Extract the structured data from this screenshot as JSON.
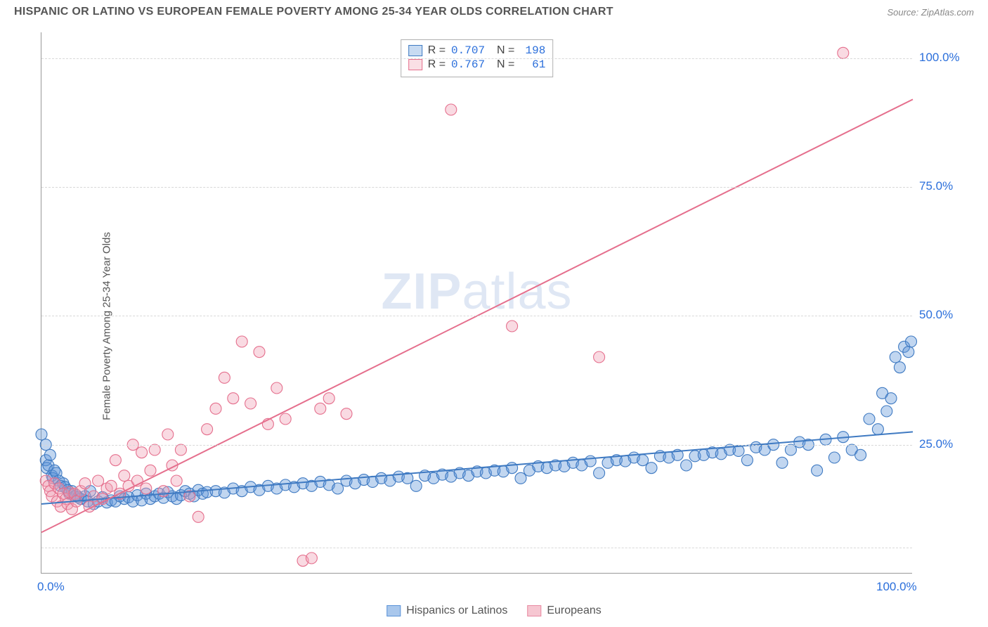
{
  "header": {
    "title": "HISPANIC OR LATINO VS EUROPEAN FEMALE POVERTY AMONG 25-34 YEAR OLDS CORRELATION CHART",
    "source": "Source: ZipAtlas.com"
  },
  "y_axis_label": "Female Poverty Among 25-34 Year Olds",
  "watermark": {
    "bold": "ZIP",
    "rest": "atlas"
  },
  "chart": {
    "type": "scatter",
    "xlim": [
      0,
      100
    ],
    "ylim": [
      0,
      105
    ],
    "background_color": "#ffffff",
    "grid_color": "#d8d8d8",
    "axis_color": "#999999",
    "yticks": [
      {
        "v": 25,
        "label": "25.0%"
      },
      {
        "v": 50,
        "label": "50.0%"
      },
      {
        "v": 75,
        "label": "75.0%"
      },
      {
        "v": 100,
        "label": "100.0%"
      }
    ],
    "xticks": [
      {
        "v": 0,
        "label": "0.0%"
      },
      {
        "v": 100,
        "label": "100.0%"
      }
    ],
    "grid_y": [
      5,
      25,
      50,
      75,
      100
    ],
    "tick_color": "#2b6fdb",
    "tick_fontsize": 17,
    "marker_radius": 8,
    "marker_fill_opacity": 0.38,
    "marker_stroke_width": 1.1,
    "line_width": 2.0,
    "series": [
      {
        "name": "Hispanics or Latinos",
        "color": "#5b93d8",
        "stroke": "#3f7ac2",
        "stats": {
          "R": "0.707",
          "N": "198"
        },
        "trend": {
          "x1": 0,
          "y1": 13.5,
          "x2": 100,
          "y2": 27.5
        },
        "points": [
          [
            0,
            27
          ],
          [
            0.5,
            25
          ],
          [
            0.5,
            22
          ],
          [
            0.6,
            20.5
          ],
          [
            0.8,
            21
          ],
          [
            1,
            23
          ],
          [
            1.2,
            19
          ],
          [
            1.3,
            18.5
          ],
          [
            1.5,
            20
          ],
          [
            1.7,
            19.5
          ],
          [
            2,
            18
          ],
          [
            2.2,
            17
          ],
          [
            2.5,
            17.5
          ],
          [
            2.7,
            16.8
          ],
          [
            3,
            16.2
          ],
          [
            3.2,
            15.5
          ],
          [
            3.5,
            16
          ],
          [
            3.8,
            15
          ],
          [
            4,
            15.2
          ],
          [
            4.2,
            14.8
          ],
          [
            4.5,
            14.5
          ],
          [
            5,
            15
          ],
          [
            5.3,
            14
          ],
          [
            5.6,
            16
          ],
          [
            6,
            13.5
          ],
          [
            6.5,
            14
          ],
          [
            7,
            14.8
          ],
          [
            7.5,
            13.8
          ],
          [
            8,
            14.2
          ],
          [
            8.5,
            14
          ],
          [
            9,
            15
          ],
          [
            9.5,
            14.5
          ],
          [
            10,
            14.8
          ],
          [
            10.5,
            14
          ],
          [
            11,
            15.2
          ],
          [
            11.5,
            14.2
          ],
          [
            12,
            15.5
          ],
          [
            12.5,
            14.5
          ],
          [
            13,
            15
          ],
          [
            13.5,
            15.5
          ],
          [
            14,
            14.7
          ],
          [
            14.5,
            15.8
          ],
          [
            15,
            15
          ],
          [
            15.5,
            14.5
          ],
          [
            16,
            15.2
          ],
          [
            16.5,
            16
          ],
          [
            17,
            15.5
          ],
          [
            17.5,
            15
          ],
          [
            18,
            16.2
          ],
          [
            18.5,
            15.5
          ],
          [
            19,
            15.8
          ],
          [
            20,
            16
          ],
          [
            21,
            15.7
          ],
          [
            22,
            16.5
          ],
          [
            23,
            16
          ],
          [
            24,
            16.8
          ],
          [
            25,
            16.2
          ],
          [
            26,
            17
          ],
          [
            27,
            16.5
          ],
          [
            28,
            17.2
          ],
          [
            29,
            16.8
          ],
          [
            30,
            17.5
          ],
          [
            31,
            17
          ],
          [
            32,
            17.8
          ],
          [
            33,
            17.2
          ],
          [
            34,
            16.5
          ],
          [
            35,
            18
          ],
          [
            36,
            17.5
          ],
          [
            37,
            18.2
          ],
          [
            38,
            17.8
          ],
          [
            39,
            18.5
          ],
          [
            40,
            18
          ],
          [
            41,
            18.8
          ],
          [
            42,
            18.5
          ],
          [
            43,
            17
          ],
          [
            44,
            19
          ],
          [
            45,
            18.5
          ],
          [
            46,
            19.2
          ],
          [
            47,
            18.8
          ],
          [
            48,
            19.5
          ],
          [
            49,
            19
          ],
          [
            50,
            19.8
          ],
          [
            51,
            19.5
          ],
          [
            52,
            20
          ],
          [
            53,
            19.8
          ],
          [
            54,
            20.5
          ],
          [
            55,
            18.5
          ],
          [
            56,
            20
          ],
          [
            57,
            20.8
          ],
          [
            58,
            20.5
          ],
          [
            59,
            21
          ],
          [
            60,
            20.8
          ],
          [
            61,
            21.5
          ],
          [
            62,
            21
          ],
          [
            63,
            21.8
          ],
          [
            64,
            19.5
          ],
          [
            65,
            21.5
          ],
          [
            66,
            22
          ],
          [
            67,
            21.8
          ],
          [
            68,
            22.5
          ],
          [
            69,
            22
          ],
          [
            70,
            20.5
          ],
          [
            71,
            22.8
          ],
          [
            72,
            22.5
          ],
          [
            73,
            23
          ],
          [
            74,
            21
          ],
          [
            75,
            22.8
          ],
          [
            76,
            23
          ],
          [
            77,
            23.5
          ],
          [
            78,
            23.2
          ],
          [
            79,
            24
          ],
          [
            80,
            23.8
          ],
          [
            81,
            22
          ],
          [
            82,
            24.5
          ],
          [
            83,
            24
          ],
          [
            84,
            25
          ],
          [
            85,
            21.5
          ],
          [
            86,
            24
          ],
          [
            87,
            25.5
          ],
          [
            88,
            25
          ],
          [
            89,
            20
          ],
          [
            90,
            26
          ],
          [
            91,
            22.5
          ],
          [
            92,
            26.5
          ],
          [
            93,
            24
          ],
          [
            94,
            23
          ],
          [
            95,
            30
          ],
          [
            96,
            28
          ],
          [
            96.5,
            35
          ],
          [
            97,
            31.5
          ],
          [
            97.5,
            34
          ],
          [
            98,
            42
          ],
          [
            98.5,
            40
          ],
          [
            99,
            44
          ],
          [
            99.5,
            43
          ],
          [
            99.8,
            45
          ]
        ]
      },
      {
        "name": "Europeans",
        "color": "#f09fb2",
        "stroke": "#e56f8d",
        "stats": {
          "R": "0.767",
          "N": "61"
        },
        "trend": {
          "x1": 0,
          "y1": 8,
          "x2": 100,
          "y2": 92
        },
        "points": [
          [
            0.5,
            18
          ],
          [
            0.8,
            17
          ],
          [
            1,
            16
          ],
          [
            1.2,
            15
          ],
          [
            1.5,
            17.5
          ],
          [
            1.8,
            14
          ],
          [
            2,
            16.5
          ],
          [
            2.2,
            13
          ],
          [
            2.5,
            15.5
          ],
          [
            2.8,
            14.5
          ],
          [
            3,
            13.5
          ],
          [
            3.2,
            15.8
          ],
          [
            3.5,
            12.5
          ],
          [
            3.8,
            15.5
          ],
          [
            4,
            14
          ],
          [
            4.5,
            16
          ],
          [
            5,
            17.5
          ],
          [
            5.5,
            13
          ],
          [
            6,
            15
          ],
          [
            6.5,
            18
          ],
          [
            7,
            14.5
          ],
          [
            7.5,
            16.5
          ],
          [
            8,
            17
          ],
          [
            8.5,
            22
          ],
          [
            9,
            15.5
          ],
          [
            9.5,
            19
          ],
          [
            10,
            17
          ],
          [
            10.5,
            25
          ],
          [
            11,
            18
          ],
          [
            11.5,
            23.5
          ],
          [
            12,
            16.5
          ],
          [
            12.5,
            20
          ],
          [
            13,
            24
          ],
          [
            14,
            16
          ],
          [
            14.5,
            27
          ],
          [
            15,
            21
          ],
          [
            15.5,
            18
          ],
          [
            16,
            24
          ],
          [
            17,
            15
          ],
          [
            18,
            11
          ],
          [
            19,
            28
          ],
          [
            20,
            32
          ],
          [
            21,
            38
          ],
          [
            22,
            34
          ],
          [
            23,
            45
          ],
          [
            24,
            33
          ],
          [
            25,
            43
          ],
          [
            26,
            29
          ],
          [
            27,
            36
          ],
          [
            28,
            30
          ],
          [
            30,
            2.5
          ],
          [
            31,
            3
          ],
          [
            32,
            32
          ],
          [
            33,
            34
          ],
          [
            35,
            31
          ],
          [
            47,
            90
          ],
          [
            54,
            48
          ],
          [
            64,
            42
          ],
          [
            92,
            101
          ]
        ]
      }
    ]
  },
  "legend": {
    "items": [
      {
        "label": "Hispanics or Latinos",
        "fill": "#a9c7ec",
        "stroke": "#5b93d8"
      },
      {
        "label": "Europeans",
        "fill": "#f6c6d1",
        "stroke": "#e88aa2"
      }
    ]
  }
}
